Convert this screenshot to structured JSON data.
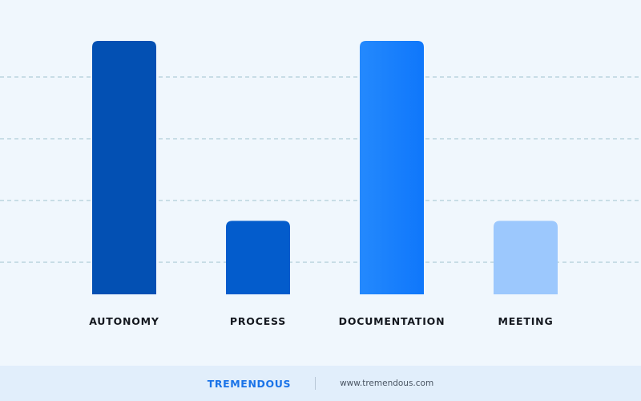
{
  "chart_data": {
    "type": "bar",
    "categories": [
      "AUTONOMY",
      "PROCESS",
      "DOCUMENTATION",
      "MEETING"
    ],
    "values": [
      100,
      29,
      100,
      29
    ],
    "ylim": [
      0,
      100
    ],
    "grid": true,
    "colors": [
      "#0350b3",
      "#035ccc",
      "#1b84fd",
      "#9cc8fd"
    ],
    "gradient_bar": {
      "index": 2,
      "from": "#2489fd",
      "to": "#0f77fb"
    },
    "gridline_color": "#9fc3cf",
    "value_labels_shown": false
  },
  "footer": {
    "brand": "TREMENDOUS",
    "url": "www.tremendous.com"
  }
}
